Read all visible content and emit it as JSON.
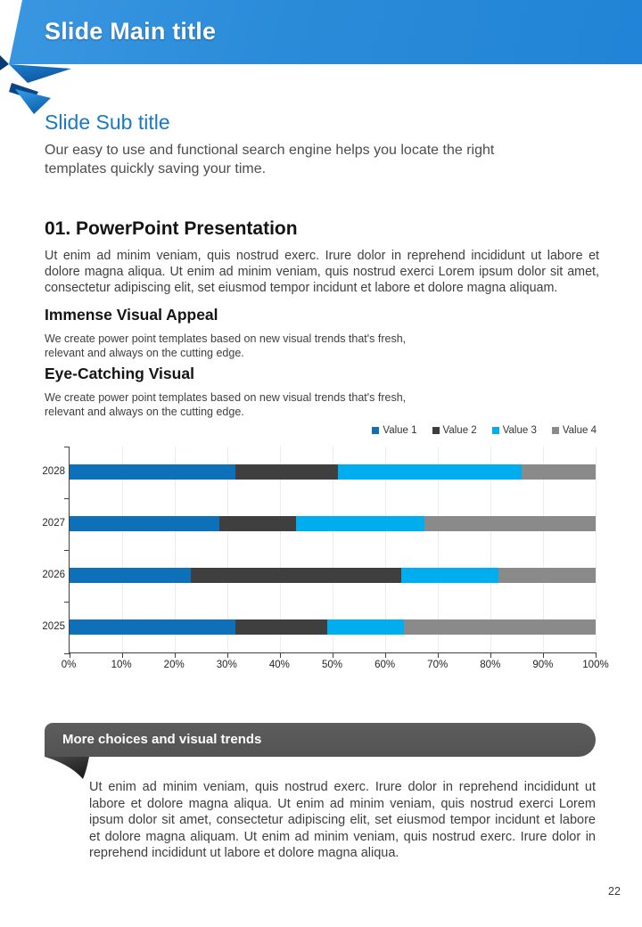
{
  "page": {
    "number": "22"
  },
  "header": {
    "title": "Slide Main title",
    "accent": "#2a8bd8"
  },
  "subtitle": {
    "title": "Slide Sub title",
    "body": "Our easy to use and functional search engine helps you locate the right templates quickly saving your time."
  },
  "intro": {
    "heading": "01. PowerPoint Presentation",
    "body": "Ut enim ad minim veniam, quis nostrud exerc. Irure dolor in reprehend incididunt ut labore et dolore magna aliqua. Ut enim ad minim veniam, quis nostrud exerci  Lorem ipsum dolor sit amet, consectetur adipiscing elit, set eiusmod tempor incidunt et labore et dolore magna aliquam."
  },
  "features": [
    {
      "heading": "Immense Visual Appeal",
      "body": "We create power point templates based on new visual trends that's fresh,\nrelevant and always on the cutting edge."
    },
    {
      "heading": "Eye-Catching Visual",
      "body": "We create power point templates based on new visual trends that's fresh,\nrelevant and always on the cutting edge."
    }
  ],
  "chart_data": {
    "type": "bar",
    "orientation": "horizontal",
    "stacked": true,
    "stacked_to_100_percent": true,
    "categories": [
      "2028",
      "2027",
      "2026",
      "2025"
    ],
    "series": [
      {
        "name": "Value 1",
        "color": "#0d70b8",
        "values": [
          31.5,
          28.5,
          23.0,
          31.5
        ]
      },
      {
        "name": "Value 2",
        "color": "#3f3f3f",
        "values": [
          19.5,
          14.5,
          40.0,
          17.5
        ]
      },
      {
        "name": "Value 3",
        "color": "#00aeef",
        "values": [
          35.0,
          24.5,
          18.5,
          14.5
        ]
      },
      {
        "name": "Value 4",
        "color": "#8a8a8a",
        "values": [
          14.0,
          32.5,
          18.5,
          36.5
        ]
      }
    ],
    "x_ticks": [
      "0%",
      "10%",
      "20%",
      "30%",
      "40%",
      "50%",
      "60%",
      "70%",
      "80%",
      "90%",
      "100%"
    ],
    "xlim": [
      0,
      100
    ],
    "xlabel": "",
    "ylabel": "",
    "title": "",
    "legend_position": "top-right",
    "grid": true
  },
  "banner": {
    "label": "More choices and visual trends",
    "color": "#585858"
  },
  "closing": {
    "body": "Ut enim ad minim veniam, quis nostrud exerc. Irure dolor in reprehend incididunt ut labore et dolore magna aliqua. Ut enim ad minim veniam, quis nostrud exerci  Lorem ipsum dolor sit amet, consectetur adipiscing elit, set eiusmod tempor incidunt et labore et dolore magna aliquam. Ut enim ad minim veniam, quis nostrud exerc. Irure dolor in reprehend incididunt ut labore et dolore magna aliqua."
  }
}
